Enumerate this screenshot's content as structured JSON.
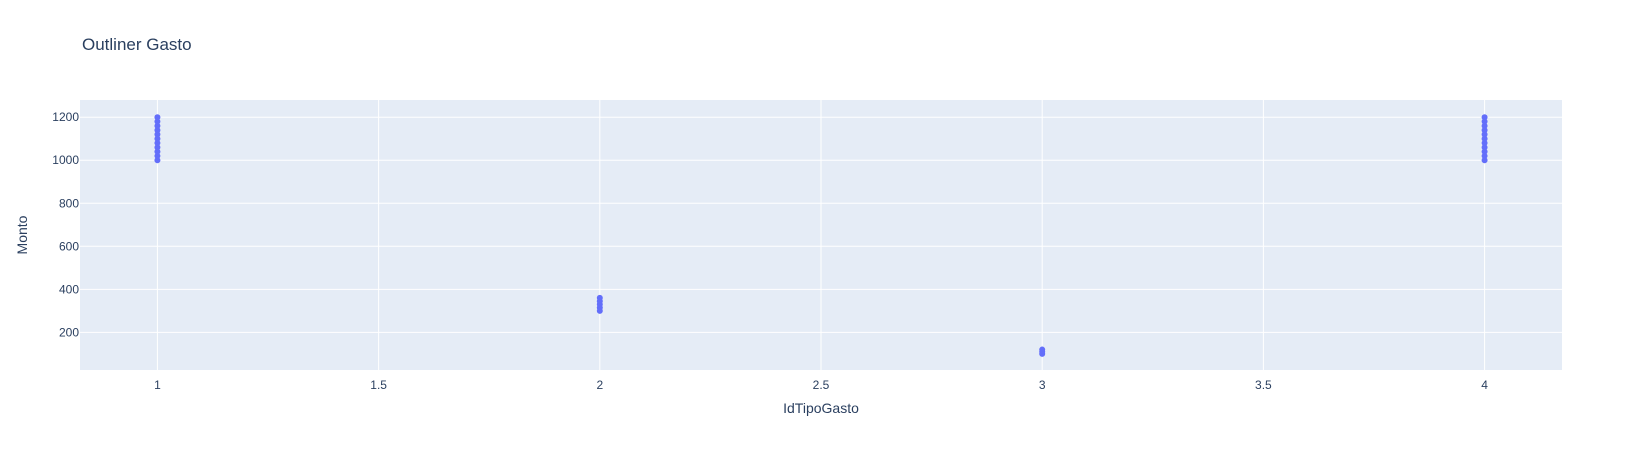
{
  "chart_data": {
    "type": "scatter",
    "title": "Outliner Gasto",
    "xlabel": "IdTipoGasto",
    "ylabel": "Monto",
    "xlim": [
      0.825,
      4.175
    ],
    "ylim": [
      25,
      1280
    ],
    "x_ticks": [
      1,
      1.5,
      2,
      2.5,
      3,
      3.5,
      4
    ],
    "x_tick_labels": [
      "1",
      "1.5",
      "2",
      "2.5",
      "3",
      "3.5",
      "4"
    ],
    "y_ticks": [
      200,
      400,
      600,
      800,
      1000,
      1200
    ],
    "y_tick_labels": [
      "200",
      "400",
      "600",
      "800",
      "1000",
      "1200"
    ],
    "grid": true,
    "legend": "none",
    "series": [
      {
        "color": "#636efa",
        "x": [
          1,
          1,
          1,
          1,
          1,
          1,
          1,
          1,
          1,
          1,
          1,
          2,
          2,
          2,
          2,
          2,
          3,
          3,
          3,
          4,
          4,
          4,
          4,
          4,
          4,
          4,
          4,
          4,
          4,
          4
        ],
        "y": [
          1000,
          1020,
          1040,
          1060,
          1080,
          1100,
          1120,
          1140,
          1160,
          1180,
          1200,
          300,
          315,
          330,
          345,
          360,
          100,
          110,
          120,
          1000,
          1020,
          1040,
          1060,
          1080,
          1100,
          1120,
          1140,
          1160,
          1180,
          1200
        ]
      }
    ]
  }
}
